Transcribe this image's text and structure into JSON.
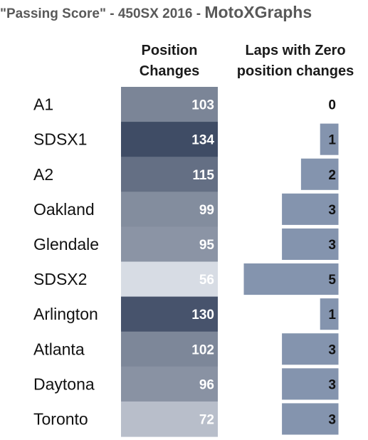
{
  "title": {
    "quoted": "\"Passing Score\" - 450SX 2016 - ",
    "brand": "MotoXGraphs"
  },
  "columns": {
    "position_changes": [
      "Position",
      "Changes"
    ],
    "zero_laps": [
      "Laps with Zero",
      "position changes"
    ]
  },
  "colors": {
    "heat_low": "#d7dce4",
    "heat_high": "#3f4c65",
    "bar": "#8494ae",
    "bar_border": "#ffffff",
    "label_text": "#111111"
  },
  "chart_data": [
    {
      "type": "heatmap",
      "title": "Position Changes",
      "categories": [
        "A1",
        "SDSX1",
        "A2",
        "Oakland",
        "Glendale",
        "SDSX2",
        "Arlington",
        "Atlanta",
        "Daytona",
        "Toronto"
      ],
      "values": [
        103,
        134,
        115,
        99,
        95,
        56,
        130,
        102,
        96,
        72
      ],
      "color_scale": {
        "min": 56,
        "max": 134
      }
    },
    {
      "type": "bar",
      "title": "Laps with Zero position changes",
      "categories": [
        "A1",
        "SDSX1",
        "A2",
        "Oakland",
        "Glendale",
        "SDSX2",
        "Arlington",
        "Atlanta",
        "Daytona",
        "Toronto"
      ],
      "values": [
        0,
        1,
        2,
        3,
        3,
        5,
        1,
        3,
        3,
        3
      ],
      "orientation": "horizontal",
      "direction": "right-to-left",
      "xlim": [
        0,
        5
      ]
    }
  ]
}
